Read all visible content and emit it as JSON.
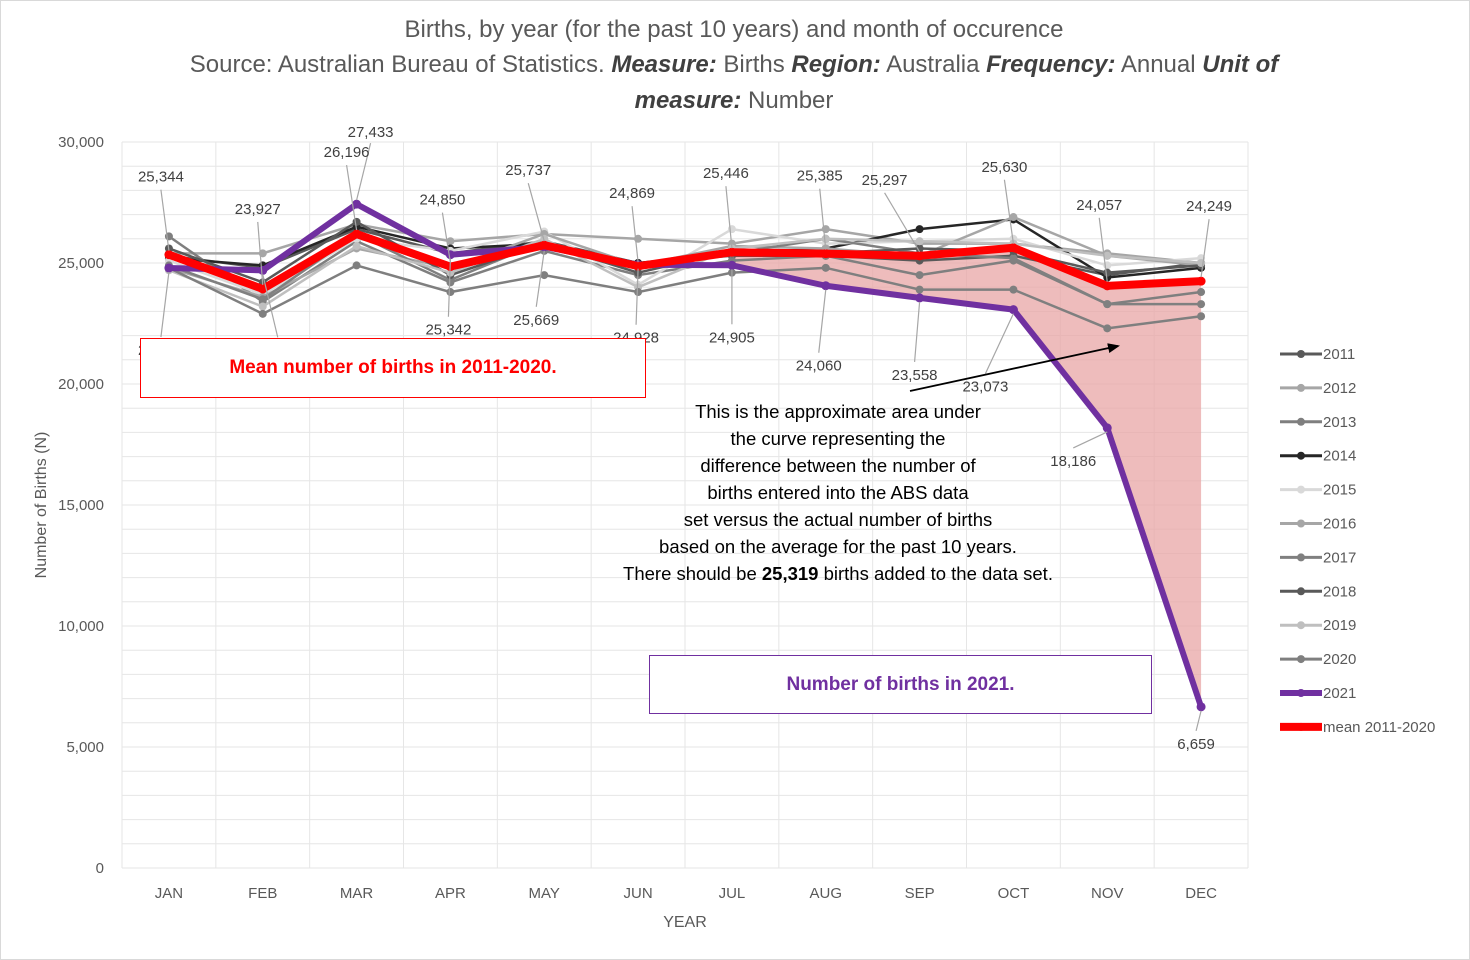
{
  "title": {
    "line1": "Births, by year (for the past 10 years) and month of occurence",
    "source_prefix": "Source: Australian Bureau of Statistics.",
    "measure_label": "Measure:",
    "measure_value": "Births",
    "region_label": "Region:",
    "region_value": "Australia",
    "frequency_label": "Frequency:",
    "frequency_value": "Annual",
    "unit_label_1": "Unit of",
    "unit_label_2": "measure:",
    "unit_value": "Number"
  },
  "annotations": {
    "mean_box": "Mean number of births in 2011-2020.",
    "births_2021_box": "Number of births in 2021.",
    "note_lines": [
      "This is the approximate area under",
      "the curve representing the",
      "difference between the number of",
      "births entered into the ABS data",
      "set versus the actual number of births",
      "based on the average for the past 10 years."
    ],
    "note_last_prefix": "There should be",
    "note_last_bold": "25,319",
    "note_last_suffix": "births added to the data set."
  },
  "colors": {
    "mean": "#ff0000",
    "y2021": "#7030a0",
    "area": "#e8a5a5",
    "grid": "#e6e6e6",
    "axis_text": "#595959"
  },
  "chart_data": {
    "type": "line",
    "xlabel": "YEAR",
    "ylabel": "Number of Births (N)",
    "ylim": [
      0,
      30000
    ],
    "yticks": [
      0,
      5000,
      10000,
      15000,
      20000,
      25000,
      30000
    ],
    "ytick_labels": [
      "0",
      "5,000",
      "10,000",
      "15,000",
      "20,000",
      "25,000",
      "30,000"
    ],
    "grid": true,
    "legend_position": "right",
    "categories": [
      "JAN",
      "FEB",
      "MAR",
      "APR",
      "MAY",
      "JUN",
      "JUL",
      "AUG",
      "SEP",
      "OCT",
      "NOV",
      "DEC"
    ],
    "series": [
      {
        "name": "2011",
        "color": "#595959",
        "values": [
          25300,
          24800,
          26400,
          25400,
          25900,
          25000,
          25300,
          25300,
          25100,
          25300,
          24500,
          25000
        ]
      },
      {
        "name": "2012",
        "color": "#a6a6a6",
        "values": [
          25400,
          25400,
          26600,
          25900,
          26200,
          26000,
          25800,
          26400,
          25800,
          25800,
          25400,
          25000
        ]
      },
      {
        "name": "2013",
        "color": "#7f7f7f",
        "values": [
          26100,
          23400,
          25900,
          24200,
          25500,
          24500,
          25100,
          25300,
          24500,
          25100,
          23300,
          23800
        ]
      },
      {
        "name": "2014",
        "color": "#262626",
        "values": [
          25200,
          24900,
          26500,
          25600,
          25800,
          25000,
          25400,
          25600,
          26400,
          26800,
          24400,
          24800
        ]
      },
      {
        "name": "2015",
        "color": "#d9d9d9",
        "values": [
          25100,
          23700,
          26000,
          25500,
          26300,
          24100,
          26400,
          25800,
          25900,
          26000,
          24900,
          25200
        ]
      },
      {
        "name": "2016",
        "color": "#a6a6a6",
        "values": [
          24800,
          23600,
          25600,
          24800,
          26200,
          24900,
          25700,
          25600,
          25300,
          26900,
          25300,
          24900
        ]
      },
      {
        "name": "2017",
        "color": "#808080",
        "values": [
          24900,
          23500,
          26200,
          24300,
          25900,
          24800,
          25400,
          26000,
          25400,
          25200,
          23300,
          23300
        ]
      },
      {
        "name": "2018",
        "color": "#595959",
        "values": [
          25600,
          24200,
          26700,
          24500,
          25800,
          24600,
          25500,
          25400,
          25600,
          25500,
          24600,
          24900
        ]
      },
      {
        "name": "2019",
        "color": "#bfbfbf",
        "values": [
          24700,
          23200,
          25700,
          24600,
          26000,
          24000,
          25600,
          26000,
          25900,
          25800,
          25300,
          25000
        ]
      },
      {
        "name": "2020",
        "color": "#7f7f7f",
        "values": [
          24800,
          22900,
          24900,
          23800,
          24500,
          23800,
          24600,
          24800,
          23900,
          23900,
          22300,
          22800
        ]
      },
      {
        "name": "2021",
        "color": "#7030a0",
        "values": [
          24793,
          24695,
          27433,
          25342,
          25669,
          24928,
          24905,
          24060,
          23558,
          23073,
          18186,
          6659
        ]
      },
      {
        "name": "mean 2011-2020",
        "color": "#ff0000",
        "values": [
          25344,
          23927,
          26196,
          24850,
          25737,
          24869,
          25446,
          25385,
          25297,
          25630,
          24057,
          24249
        ]
      }
    ],
    "data_labels_mean": [
      "25,344",
      "23,927",
      "26,196",
      "24,850",
      "25,737",
      "24,869",
      "25,446",
      "25,385",
      "25,297",
      "25,630",
      "24,057",
      "24,249"
    ],
    "data_labels_2021": [
      "24,793",
      "24,695",
      "27,433",
      "25,342",
      "25,669",
      "24,928",
      "24,905",
      "24,060",
      "23,558",
      "23,073",
      "18,186",
      "6,659"
    ]
  }
}
